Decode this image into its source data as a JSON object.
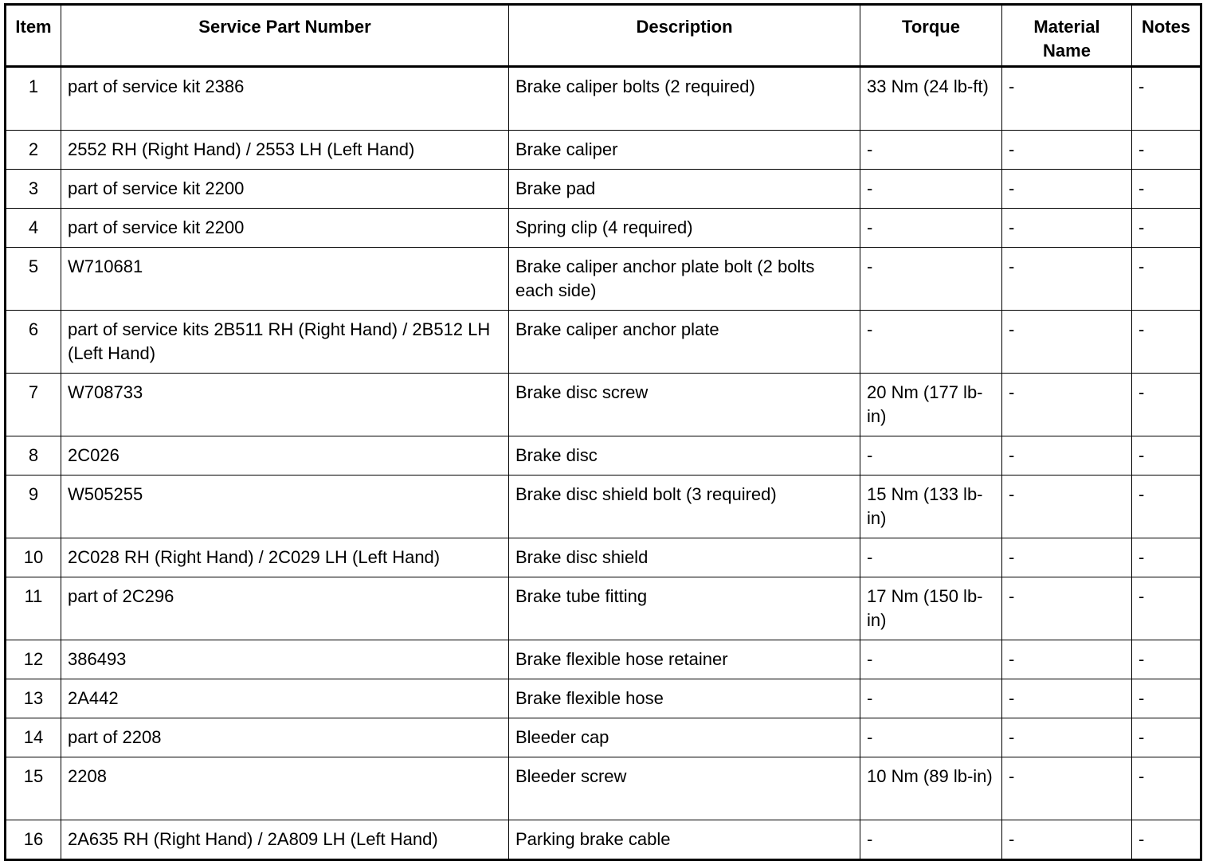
{
  "headers": [
    "Item",
    "Service Part Number",
    "Description",
    "Torque",
    "Material Name",
    "Notes"
  ],
  "rows": [
    {
      "item": "1",
      "part": "part of service kit 2386",
      "desc": "Brake caliper bolts (2 required)",
      "torque": "33 Nm (24 lb-ft)",
      "material": "-",
      "notes": "-"
    },
    {
      "item": "2",
      "part": "2552 RH (Right Hand) / 2553 LH (Left Hand)",
      "desc": "Brake caliper",
      "torque": "-",
      "material": "-",
      "notes": "-"
    },
    {
      "item": "3",
      "part": "part of service kit 2200",
      "desc": "Brake pad",
      "torque": "-",
      "material": "-",
      "notes": "-"
    },
    {
      "item": "4",
      "part": "part of service kit 2200",
      "desc": "Spring clip (4 required)",
      "torque": "-",
      "material": "-",
      "notes": "-"
    },
    {
      "item": "5",
      "part": "W710681",
      "desc": "Brake caliper anchor plate bolt (2 bolts each side)",
      "torque": "-",
      "material": "-",
      "notes": "-"
    },
    {
      "item": "6",
      "part": "part of service kits 2B511 RH (Right Hand) / 2B512 LH (Left Hand)",
      "desc": "Brake caliper anchor plate",
      "torque": "-",
      "material": "-",
      "notes": "-"
    },
    {
      "item": "7",
      "part": "W708733",
      "desc": "Brake disc screw",
      "torque": "20 Nm (177 lb-in)",
      "material": "-",
      "notes": "-"
    },
    {
      "item": "8",
      "part": "2C026",
      "desc": "Brake disc",
      "torque": "-",
      "material": "-",
      "notes": "-"
    },
    {
      "item": "9",
      "part": "W505255",
      "desc": "Brake disc shield bolt (3 required)",
      "torque": "15 Nm (133 lb-in)",
      "material": "-",
      "notes": "-"
    },
    {
      "item": "10",
      "part": "2C028 RH (Right Hand) / 2C029 LH (Left Hand)",
      "desc": "Brake disc shield",
      "torque": "-",
      "material": "-",
      "notes": "-"
    },
    {
      "item": "11",
      "part": "part of 2C296",
      "desc": "Brake tube fitting",
      "torque": "17 Nm (150 lb-in)",
      "material": "-",
      "notes": "-"
    },
    {
      "item": "12",
      "part": "386493",
      "desc": "Brake flexible hose retainer",
      "torque": "-",
      "material": "-",
      "notes": "-"
    },
    {
      "item": "13",
      "part": "2A442",
      "desc": "Brake flexible hose",
      "torque": "-",
      "material": "-",
      "notes": "-"
    },
    {
      "item": "14",
      "part": "part of 2208",
      "desc": "Bleeder cap",
      "torque": "-",
      "material": "-",
      "notes": "-"
    },
    {
      "item": "15",
      "part": "2208",
      "desc": "Bleeder screw",
      "torque": "10 Nm (89 lb-in)",
      "material": "-",
      "notes": "-"
    },
    {
      "item": "16",
      "part": "2A635 RH (Right Hand) / 2A809 LH (Left Hand)",
      "desc": "Parking brake cable",
      "torque": "-",
      "material": "-",
      "notes": "-"
    }
  ]
}
